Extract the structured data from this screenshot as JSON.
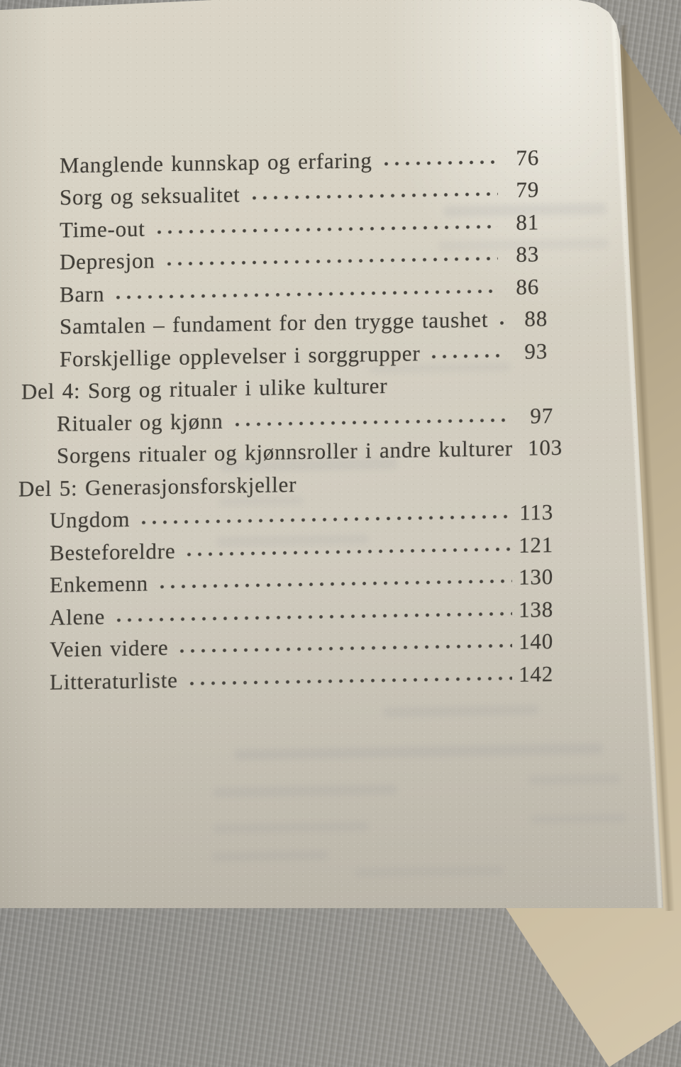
{
  "page": {
    "kind": "book-table-of-contents",
    "language": "Norwegian"
  },
  "toc": {
    "entries": [
      {
        "type": "entry",
        "label": "Manglende kunnskap og erfaring",
        "page": "76"
      },
      {
        "type": "entry",
        "label": "Sorg og seksualitet",
        "page": "79"
      },
      {
        "type": "entry",
        "label": "Time-out",
        "page": "81"
      },
      {
        "type": "entry",
        "label": "Depresjon",
        "page": "83"
      },
      {
        "type": "entry",
        "label": "Barn",
        "page": "86"
      },
      {
        "type": "entry",
        "label": "Samtalen – fundament for den trygge taushet",
        "page": "88"
      },
      {
        "type": "entry",
        "label": "Forskjellige opplevelser i sorggrupper",
        "page": "93"
      },
      {
        "type": "section",
        "label": "Del 4: Sorg og ritualer i ulike kulturer",
        "page": ""
      },
      {
        "type": "entry",
        "label": "Ritualer og kjønn",
        "page": "97"
      },
      {
        "type": "entry",
        "label": "Sorgens ritualer og kjønnsroller i andre kulturer",
        "page": "103"
      },
      {
        "type": "section",
        "label": "Del 5: Generasjonsforskjeller",
        "page": ""
      },
      {
        "type": "entry",
        "label": "Ungdom",
        "page": "113"
      },
      {
        "type": "entry",
        "label": "Besteforeldre",
        "page": "121"
      },
      {
        "type": "entry",
        "label": "Enkemenn",
        "page": "130"
      },
      {
        "type": "entry",
        "label": "Alene",
        "page": "138"
      },
      {
        "type": "entry",
        "label": "Veien videre",
        "page": "140"
      },
      {
        "type": "entry",
        "label": "Litteraturliste",
        "page": "142"
      }
    ]
  },
  "colors": {
    "ink": "#403d37",
    "dot": "#47443e",
    "paper-light": "#dad5c7",
    "paper-dark": "#c7c2b6",
    "fabric": "#8b8a86",
    "underpage-dark": "#9d8f73",
    "underpage-light": "#d3c6ab"
  }
}
